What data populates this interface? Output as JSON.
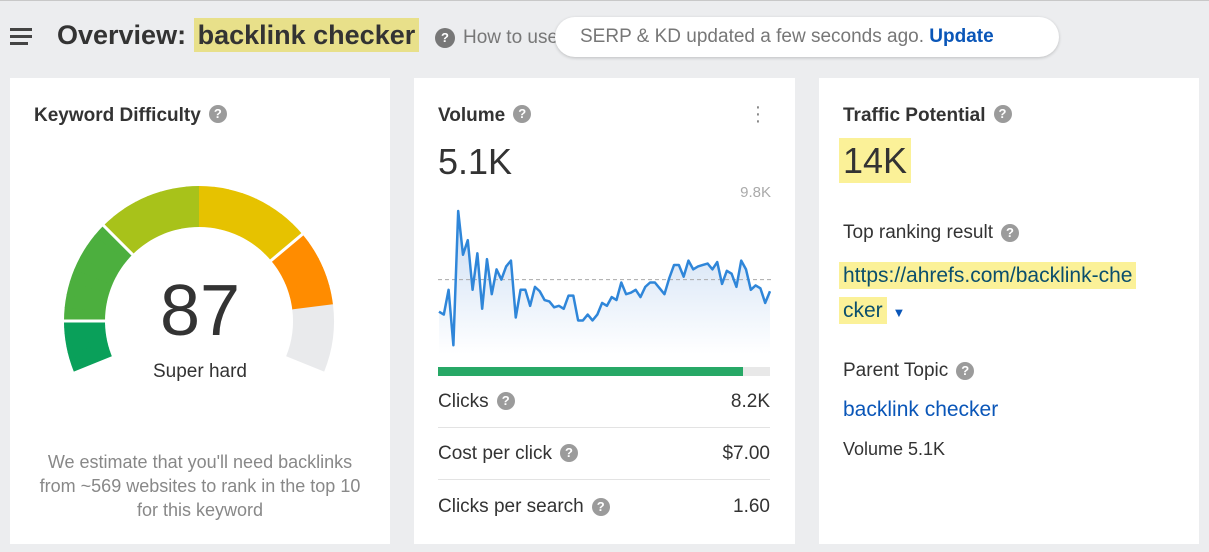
{
  "header": {
    "title_prefix": "Overview:",
    "keyword": "backlink checker",
    "how_to": "How to use",
    "toast_text": "SERP & KD updated a few seconds ago.",
    "toast_action": "Update"
  },
  "kd": {
    "title": "Keyword Difficulty",
    "score": "87",
    "score_value": 87,
    "label": "Super hard",
    "estimate": "We estimate that you'll need backlinks from ~569 websites to rank in the top 10 for this keyword",
    "colors": [
      "#0aa05a",
      "#4caf3e",
      "#a8c21a",
      "#e6c200",
      "#f7b500",
      "#ff8c00",
      "#e9eaec"
    ]
  },
  "volume": {
    "title": "Volume",
    "value": "5.1K",
    "max_label": "9.8K",
    "menu_icon": "more-vertical-icon",
    "trend": [
      2.9,
      2.7,
      4.4,
      0.6,
      9.8,
      6.8,
      7.8,
      4.4,
      6.9,
      3.1,
      6.5,
      4.1,
      5.8,
      5.1,
      6.0,
      6.4,
      2.5,
      4.4,
      4.4,
      3.3,
      4.6,
      4.3,
      3.7,
      3.6,
      3.2,
      3.3,
      3.1,
      4.0,
      4.0,
      2.3,
      2.3,
      2.7,
      2.3,
      2.7,
      3.5,
      3.3,
      3.9,
      3.7,
      4.9,
      4.1,
      4.2,
      4.4,
      3.9,
      4.6,
      4.9,
      4.9,
      4.5,
      4.1,
      5.2,
      6.1,
      6.1,
      5.3,
      6.4,
      5.8,
      6.0,
      6.1,
      6.2,
      5.8,
      6.3,
      4.8,
      5.7,
      5.5,
      4.6,
      6.4,
      5.8,
      4.4,
      4.7,
      4.5,
      3.5,
      4.3
    ],
    "average": 5.1,
    "ymax": 9.8,
    "clicks_fraction": 0.92,
    "line_color": "#2f86d9",
    "bar_color": "#27a866",
    "metrics": [
      {
        "label": "Clicks",
        "value": "8.2K"
      },
      {
        "label": "Cost per click",
        "value": "$7.00"
      },
      {
        "label": "Clicks per search",
        "value": "1.60"
      }
    ]
  },
  "tp": {
    "title": "Traffic Potential",
    "value": "14K",
    "top_label": "Top ranking result",
    "url_line1": "https://ahrefs.com/backlink-che",
    "url_line2": "cker",
    "parent_label": "Parent Topic",
    "parent_value": "backlink checker",
    "parent_volume": "Volume 5.1K"
  }
}
